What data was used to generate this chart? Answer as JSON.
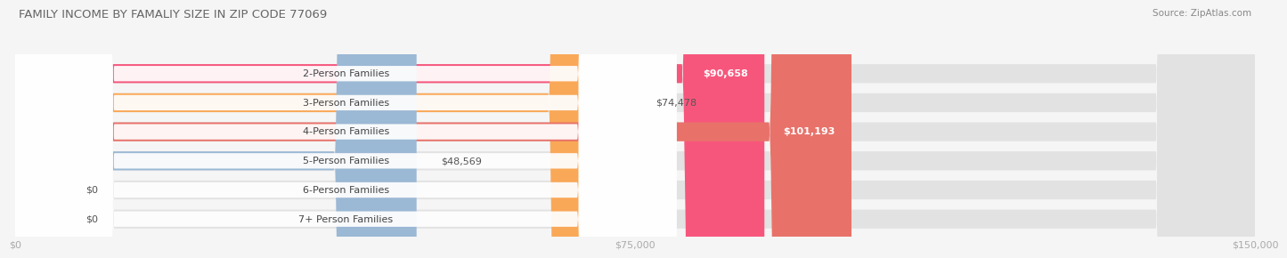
{
  "title": "FAMILY INCOME BY FAMALIY SIZE IN ZIP CODE 77069",
  "source": "Source: ZipAtlas.com",
  "categories": [
    "2-Person Families",
    "3-Person Families",
    "4-Person Families",
    "5-Person Families",
    "6-Person Families",
    "7+ Person Families"
  ],
  "values": [
    90658,
    74478,
    101193,
    48569,
    0,
    0
  ],
  "bar_colors": [
    "#F7567C",
    "#F9A858",
    "#E8726A",
    "#9BB8D4",
    "#C9A8D4",
    "#6ECAD0"
  ],
  "xlim": [
    0,
    150000
  ],
  "xticks": [
    0,
    75000,
    150000
  ],
  "xtick_labels": [
    "$0",
    "$75,000",
    "$150,000"
  ],
  "value_labels": [
    "$90,658",
    "$74,478",
    "$101,193",
    "$48,569",
    "$0",
    "$0"
  ],
  "value_inside": [
    true,
    false,
    true,
    false,
    false,
    false
  ],
  "bar_height": 0.65,
  "background_color": "#f5f5f5",
  "bar_bg_color": "#e2e2e2",
  "label_fontsize": 8.0,
  "value_fontsize": 8.0,
  "title_fontsize": 9.5
}
